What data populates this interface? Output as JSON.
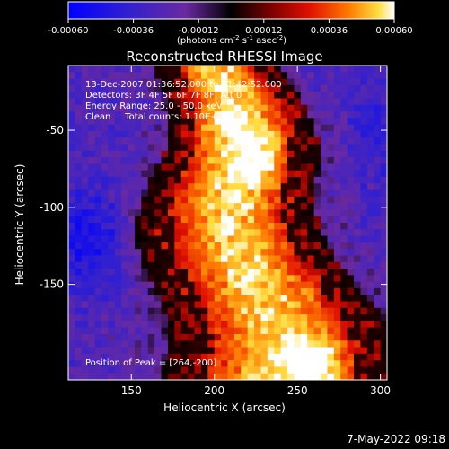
{
  "colorbar": {
    "ticks": [
      "-0.00060",
      "-0.00036",
      "-0.00012",
      "0.00012",
      "0.00036",
      "0.00060"
    ],
    "range": [
      -0.0006,
      0.0006
    ],
    "units_text": "(photons cm",
    "units_exp1": "-2",
    "units_s": " s",
    "units_exp2": "-1",
    "units_asec": " asec",
    "units_exp3": "-2",
    "units_close": ")"
  },
  "chart_data": {
    "type": "heatmap",
    "title": "Reconstructed RHESSI Image",
    "xlabel": "Heliocentric X (arcsec)",
    "ylabel": "Heliocentric Y (arcsec)",
    "xlim": [
      112,
      304
    ],
    "ylim": [
      -212,
      -8
    ],
    "x_ticks": [
      150,
      200,
      250,
      300
    ],
    "y_ticks": [
      -50,
      -100,
      -150
    ],
    "annotations": [
      "13-Dec-2007 01:36:52.000 to 01:42:52.000",
      "Detectors: 3F 4F 5F 6F 7F 8F, Att 0",
      "Energy Range: 25.0 - 50.0 keV",
      "Clean     Total counts: 1.10E+04"
    ],
    "peak_label": "Position of Peak = [264,-200]",
    "peak": [
      264,
      -200
    ],
    "timestamp": "7-May-2022 09:18"
  }
}
